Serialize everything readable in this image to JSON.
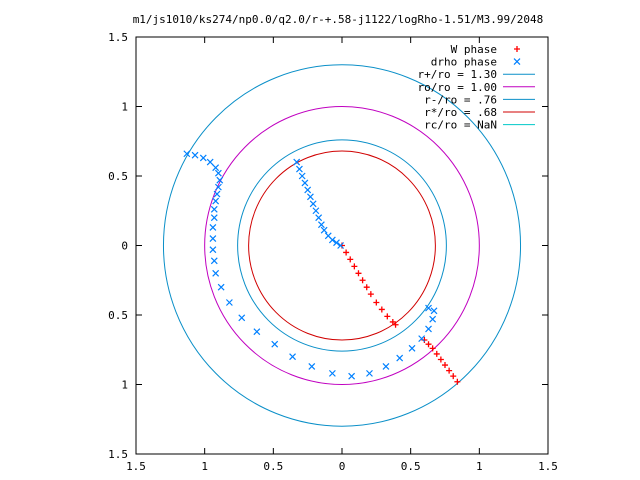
{
  "chart_data": {
    "type": "scatter",
    "title": "m1/js1010/ks274/np0.0/q2.0/r-+.58-j1122/logRho-1.51/M3.99/2048",
    "xlim": [
      -1.5,
      1.5
    ],
    "ylim": [
      -1.5,
      1.5
    ],
    "x_tick_labels": [
      "1.5",
      "1",
      "0.5",
      "0",
      "0.5",
      "1",
      "1.5"
    ],
    "y_tick_labels": [
      "1.5",
      "1",
      "0.5",
      "0",
      "0.5",
      "1",
      "1.5"
    ],
    "grid": false,
    "legend_position": "top-right",
    "series": [
      {
        "name": "W phase",
        "marker": "+",
        "color": "#ff0000",
        "points": [
          [
            0.0,
            0.0
          ],
          [
            0.03,
            -0.05
          ],
          [
            0.06,
            -0.1
          ],
          [
            0.09,
            -0.15
          ],
          [
            0.12,
            -0.2
          ],
          [
            0.15,
            -0.25
          ],
          [
            0.18,
            -0.3
          ],
          [
            0.21,
            -0.35
          ],
          [
            0.25,
            -0.41
          ],
          [
            0.29,
            -0.46
          ],
          [
            0.33,
            -0.51
          ],
          [
            0.37,
            -0.55
          ],
          [
            0.39,
            -0.57
          ],
          [
            0.6,
            -0.68
          ],
          [
            0.63,
            -0.71
          ],
          [
            0.66,
            -0.74
          ],
          [
            0.69,
            -0.78
          ],
          [
            0.72,
            -0.82
          ],
          [
            0.75,
            -0.86
          ],
          [
            0.78,
            -0.9
          ],
          [
            0.81,
            -0.94
          ],
          [
            0.84,
            -0.98
          ]
        ]
      },
      {
        "name": "drho phase",
        "marker": "x",
        "color": "#0080ff",
        "points": [
          [
            -0.33,
            0.6
          ],
          [
            -0.31,
            0.55
          ],
          [
            -0.29,
            0.5
          ],
          [
            -0.27,
            0.45
          ],
          [
            -0.25,
            0.4
          ],
          [
            -0.23,
            0.35
          ],
          [
            -0.21,
            0.3
          ],
          [
            -0.19,
            0.25
          ],
          [
            -0.17,
            0.2
          ],
          [
            -0.15,
            0.15
          ],
          [
            -0.13,
            0.11
          ],
          [
            -0.1,
            0.07
          ],
          [
            -0.07,
            0.04
          ],
          [
            -0.04,
            0.02
          ],
          [
            -0.01,
            0.0
          ],
          [
            -1.13,
            0.66
          ],
          [
            -1.07,
            0.65
          ],
          [
            -1.01,
            0.63
          ],
          [
            -0.96,
            0.6
          ],
          [
            -0.92,
            0.56
          ],
          [
            -0.9,
            0.52
          ],
          [
            -0.89,
            0.47
          ],
          [
            -0.9,
            0.42
          ],
          [
            -0.91,
            0.37
          ],
          [
            -0.92,
            0.32
          ],
          [
            -0.93,
            0.26
          ],
          [
            -0.93,
            0.2
          ],
          [
            -0.94,
            0.13
          ],
          [
            -0.94,
            0.05
          ],
          [
            -0.94,
            -0.03
          ],
          [
            -0.93,
            -0.11
          ],
          [
            -0.92,
            -0.2
          ],
          [
            -0.88,
            -0.3
          ],
          [
            -0.82,
            -0.41
          ],
          [
            -0.73,
            -0.52
          ],
          [
            -0.62,
            -0.62
          ],
          [
            -0.49,
            -0.71
          ],
          [
            -0.36,
            -0.8
          ],
          [
            -0.22,
            -0.87
          ],
          [
            -0.07,
            -0.92
          ],
          [
            0.07,
            -0.94
          ],
          [
            0.2,
            -0.92
          ],
          [
            0.32,
            -0.87
          ],
          [
            0.42,
            -0.81
          ],
          [
            0.51,
            -0.74
          ],
          [
            0.58,
            -0.67
          ],
          [
            0.63,
            -0.6
          ],
          [
            0.66,
            -0.53
          ],
          [
            0.67,
            -0.47
          ],
          [
            0.63,
            -0.45
          ]
        ]
      }
    ],
    "circles": [
      {
        "name": "r+/ro = 1.30",
        "radius": 1.3,
        "color": "#0a8fc8"
      },
      {
        "name": "ro/ro = 1.00",
        "radius": 1.0,
        "color": "#c000c0"
      },
      {
        "name": "r-/ro = .76",
        "radius": 0.76,
        "color": "#0a8fc8"
      },
      {
        "name": "r*/ro = .68",
        "radius": 0.68,
        "color": "#d00000"
      },
      {
        "name": "rc/ro = NaN",
        "radius": null,
        "color": "#00c8c8"
      }
    ]
  }
}
